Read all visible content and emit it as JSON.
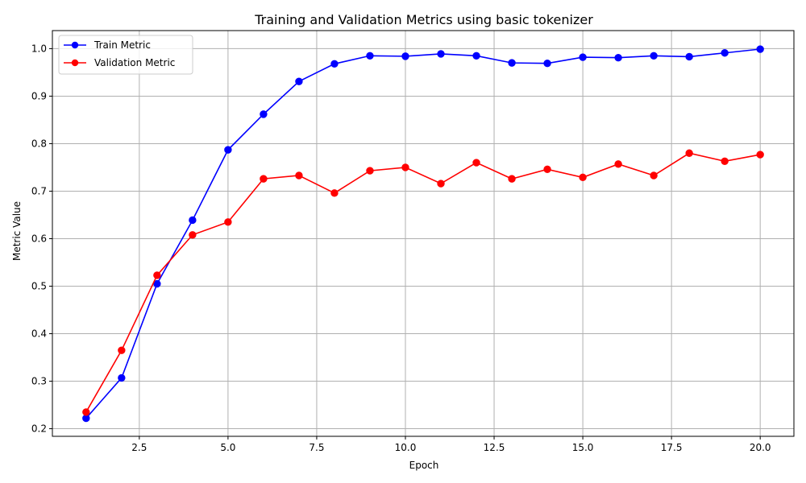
{
  "chart_data": {
    "type": "line",
    "title": "Training and Validation Metrics using basic tokenizer",
    "xlabel": "Epoch",
    "ylabel": "Metric Value",
    "xlim": [
      0.05,
      20.95
    ],
    "ylim": [
      0.184,
      1.038
    ],
    "xticks": [
      2.5,
      5.0,
      7.5,
      10.0,
      12.5,
      15.0,
      17.5,
      20.0
    ],
    "xtick_labels": [
      "2.5",
      "5.0",
      "7.5",
      "10.0",
      "12.5",
      "15.0",
      "17.5",
      "20.0"
    ],
    "yticks": [
      0.2,
      0.3,
      0.4,
      0.5,
      0.6,
      0.7,
      0.8,
      0.9,
      1.0
    ],
    "ytick_labels": [
      "0.2",
      "0.3",
      "0.4",
      "0.5",
      "0.6",
      "0.7",
      "0.8",
      "0.9",
      "1.0"
    ],
    "grid": true,
    "legend_position": "top-left",
    "x": [
      1,
      2,
      3,
      4,
      5,
      6,
      7,
      8,
      9,
      10,
      11,
      12,
      13,
      14,
      15,
      16,
      17,
      18,
      19,
      20
    ],
    "series": [
      {
        "name": "Train Metric",
        "color": "#0000ff",
        "marker": "circle",
        "values": [
          0.222,
          0.307,
          0.505,
          0.639,
          0.787,
          0.862,
          0.931,
          0.968,
          0.985,
          0.984,
          0.989,
          0.985,
          0.97,
          0.969,
          0.982,
          0.981,
          0.985,
          0.983,
          0.991,
          0.999
        ]
      },
      {
        "name": "Validation Metric",
        "color": "#ff0000",
        "marker": "circle",
        "values": [
          0.235,
          0.365,
          0.523,
          0.608,
          0.635,
          0.726,
          0.733,
          0.696,
          0.743,
          0.75,
          0.716,
          0.76,
          0.726,
          0.746,
          0.729,
          0.757,
          0.733,
          0.78,
          0.763,
          0.777
        ]
      }
    ]
  }
}
